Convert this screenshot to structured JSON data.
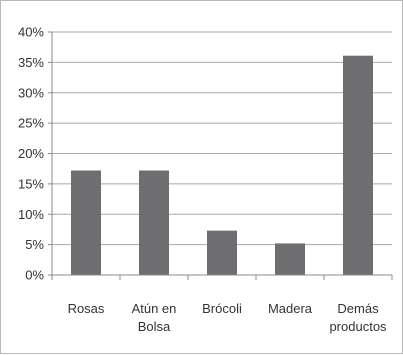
{
  "chart_data": {
    "type": "bar",
    "categories": [
      [
        "Rosas"
      ],
      [
        "Atún en",
        "Bolsa"
      ],
      [
        "Brócoli"
      ],
      [
        "Madera"
      ],
      [
        "Demás",
        "productos"
      ]
    ],
    "values": [
      17.2,
      17.2,
      7.3,
      5.2,
      36.1
    ],
    "ylim": [
      0,
      40
    ],
    "yticks": [
      {
        "value": 0,
        "label": "0%"
      },
      {
        "value": 5,
        "label": "5%"
      },
      {
        "value": 10,
        "label": "10%"
      },
      {
        "value": 15,
        "label": "15%"
      },
      {
        "value": 20,
        "label": "20%"
      },
      {
        "value": 25,
        "label": "25%"
      },
      {
        "value": 30,
        "label": "30%"
      },
      {
        "value": 35,
        "label": "35%"
      },
      {
        "value": 40,
        "label": "40%"
      }
    ],
    "grid": true,
    "legend": "none",
    "colors": {
      "bar": "#6e6e70",
      "grid": "#a8a8a8",
      "axis": "#8a8a8a"
    }
  }
}
